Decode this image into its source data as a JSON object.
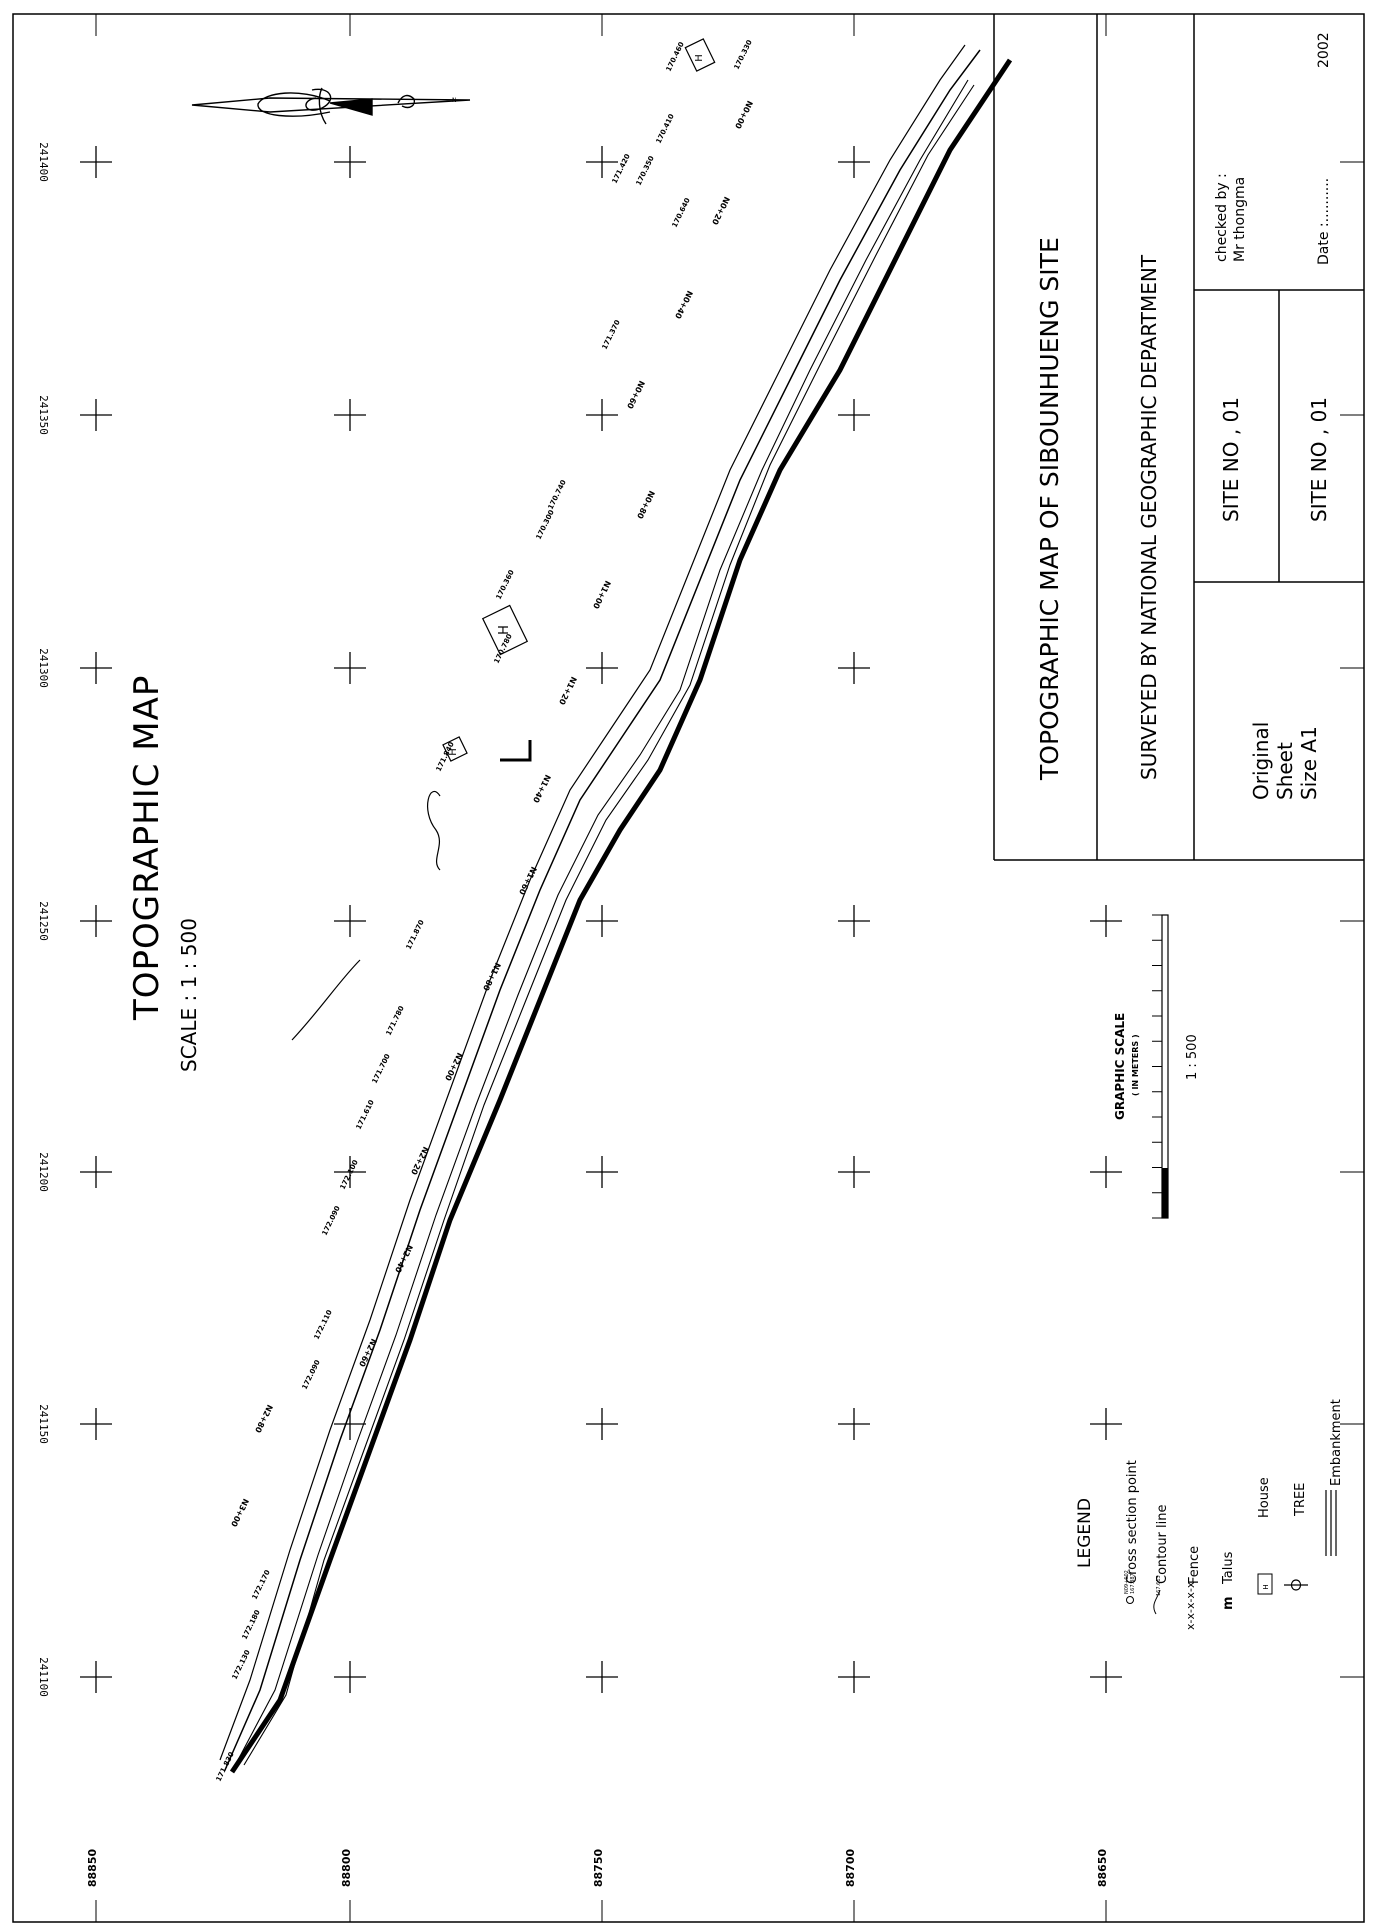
{
  "map": {
    "title": "TOPOGRAPHIC   MAP",
    "scale_label": "SCALE : 1 : 500"
  },
  "title_block": {
    "main_title": "TOPOGRAPHIC MAP OF SIBOUNHUENG SITE",
    "surveyed_by": "SURVEYED BY NATIONAL GEOGRAPHIC DEPARTMENT",
    "site_no_1": "SITE NO , 01",
    "site_no_2": "SITE NO , 01",
    "checked_by": "checked by :",
    "checker": "Mr  thongma",
    "date_label": "Date :..........",
    "year": "2002",
    "sheet_note_1": "Original",
    "sheet_note_2": "Sheet",
    "sheet_note_3": "Size A1"
  },
  "graphic_scale": {
    "title": "GRAPHIC SCALE",
    "units": "( IN METERS )",
    "ratio": "1 : 500"
  },
  "grid": {
    "y_labels": [
      "241400",
      "241350",
      "241300",
      "241250",
      "241200",
      "241150",
      "241100"
    ],
    "x_labels": [
      "88850",
      "88800",
      "88750",
      "88700",
      "88650"
    ]
  },
  "legend": {
    "title": "LEGEND",
    "items": [
      {
        "label": "Cross section point",
        "icon": "cross-section-point-icon"
      },
      {
        "label": "Contour line",
        "icon": "contour-line-icon"
      },
      {
        "label": "Fence",
        "icon": "fence-icon"
      },
      {
        "label": "Talus",
        "icon": "talus-icon"
      },
      {
        "label": "House",
        "icon": "house-icon"
      },
      {
        "label": "TREE",
        "icon": "tree-icon"
      },
      {
        "label": "Embankment",
        "icon": "embankment-icon"
      }
    ]
  },
  "annotations": {
    "stations": [
      "N0+00",
      "N0+20",
      "N0+40",
      "N0+60",
      "N0+80",
      "N1+00",
      "N1+20",
      "N1+40",
      "N1+60",
      "N1+80",
      "N2+00",
      "N2+20",
      "N2+40",
      "N2+60",
      "N2+80",
      "N3+00"
    ],
    "elevations": [
      "170.330",
      "170.460",
      "170.410",
      "171.420",
      "170.350",
      "170.640",
      "171.370",
      "170.300",
      "170.740",
      "170.360",
      "171.840",
      "170.780",
      "171.870",
      "171.780",
      "171.700",
      "171.610",
      "172.100",
      "172.090",
      "172.110",
      "172.090",
      "172.170",
      "172.180",
      "172.130",
      "171.830"
    ],
    "house_letter": "H"
  }
}
